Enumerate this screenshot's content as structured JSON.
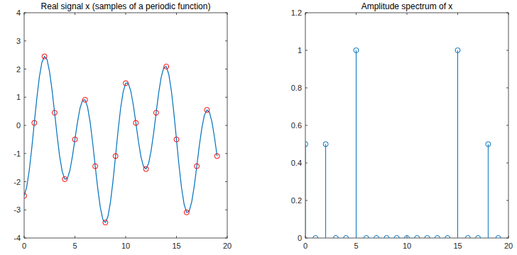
{
  "chart_data": [
    {
      "type": "line",
      "title": "Real signal x (samples of a periodic function)",
      "xlim": [
        0,
        20
      ],
      "xticks": [
        0,
        5,
        10,
        15,
        20
      ],
      "ylim": [
        -4,
        4
      ],
      "yticks": [
        -4,
        -3,
        -2,
        -1,
        0,
        1,
        2,
        3,
        4
      ],
      "series": [
        {
          "type": "line",
          "color": "#0072bd",
          "line_style": "solid",
          "x": [
            0,
            0.25,
            0.5,
            0.75,
            1,
            1.25,
            1.5,
            1.75,
            2,
            2.25,
            2.5,
            2.75,
            3,
            3.25,
            3.5,
            3.75,
            4,
            4.25,
            4.5,
            4.75,
            5,
            5.25,
            5.5,
            5.75,
            6,
            6.25,
            6.5,
            6.75,
            7,
            7.25,
            7.5,
            7.75,
            8,
            8.25,
            8.5,
            8.75,
            9,
            9.25,
            9.5,
            9.75,
            10,
            10.25,
            10.5,
            10.75,
            11,
            11.25,
            11.5,
            11.75,
            12,
            12.25,
            12.5,
            12.75,
            13,
            13.25,
            13.5,
            13.75,
            14,
            14.25,
            14.5,
            14.75,
            15,
            15.25,
            15.5,
            15.75,
            16,
            16.25,
            16.5,
            16.75,
            17,
            17.25,
            17.5,
            17.75,
            18,
            18.25,
            18.5,
            18.75,
            19
          ],
          "values": [
            -2.5,
            -2.19,
            -1.61,
            -0.81,
            0.09,
            0.97,
            1.72,
            2.24,
            2.45,
            2.34,
            1.91,
            1.25,
            0.45,
            -0.37,
            -1.11,
            -1.64,
            -1.91,
            -1.89,
            -1.61,
            -1.11,
            -0.5,
            0.11,
            0.61,
            0.89,
            0.91,
            0.64,
            0.11,
            -0.63,
            -1.45,
            -2.25,
            -2.91,
            -3.34,
            -3.45,
            -3.24,
            -2.72,
            -1.97,
            -1.09,
            -0.19,
            0.61,
            1.19,
            1.5,
            1.5,
            1.22,
            0.72,
            0.09,
            -0.56,
            -1.11,
            -1.46,
            -1.55,
            -1.36,
            -0.91,
            -0.28,
            0.45,
            1.16,
            1.72,
            2.05,
            2.09,
            1.8,
            1.22,
            0.42,
            -0.5,
            -1.42,
            -2.22,
            -2.8,
            -3.09,
            -3.05,
            -2.72,
            -2.16,
            -1.45,
            -0.72,
            -0.09,
            0.36,
            0.55,
            0.46,
            0.11,
            -0.44,
            -1.09
          ]
        },
        {
          "type": "scatter",
          "color": "#ff0000",
          "marker": "circle",
          "x": [
            0,
            1,
            2,
            3,
            4,
            5,
            6,
            7,
            8,
            9,
            10,
            11,
            12,
            13,
            14,
            15,
            16,
            17,
            18,
            19
          ],
          "values": [
            -2.5,
            0.09,
            2.45,
            0.45,
            -1.91,
            -0.5,
            0.91,
            -1.45,
            -3.45,
            -1.09,
            1.5,
            0.09,
            -1.55,
            0.45,
            2.09,
            -0.5,
            -3.09,
            -1.45,
            0.55,
            -1.09
          ]
        }
      ]
    },
    {
      "type": "stem",
      "title": "Amplitude spectrum of x",
      "xlim": [
        0,
        20
      ],
      "xticks": [
        0,
        5,
        10,
        15,
        20
      ],
      "ylim": [
        0,
        1.2
      ],
      "yticks": [
        0,
        0.2,
        0.4,
        0.6,
        0.8,
        1,
        1.2
      ],
      "x": [
        0,
        1,
        2,
        3,
        4,
        5,
        6,
        7,
        8,
        9,
        10,
        11,
        12,
        13,
        14,
        15,
        16,
        17,
        18,
        19
      ],
      "values": [
        0.5,
        0,
        0.5,
        0,
        0,
        1,
        0,
        0,
        0,
        0,
        0,
        0,
        0,
        0,
        0,
        1,
        0,
        0,
        0.5,
        0
      ],
      "color": "#0072bd",
      "marker": "circle"
    }
  ]
}
